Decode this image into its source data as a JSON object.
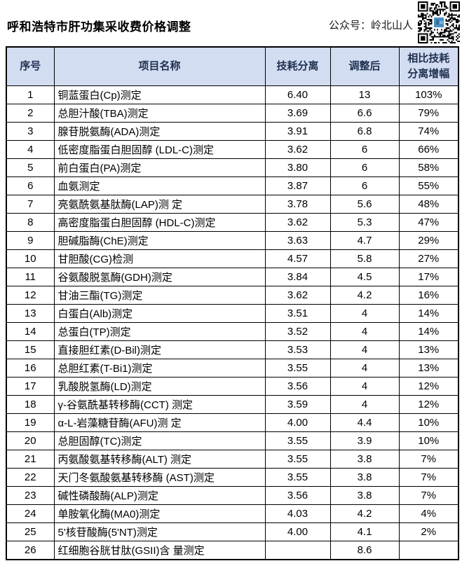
{
  "page": {
    "title": "呼和浩特市肝功集采收费价格调整",
    "account_label": "公众号：岭北山人",
    "qr_icon": "qr-code"
  },
  "colors": {
    "header_bg": "#d3ddf1",
    "header_text": "#1f3050",
    "border": "#000000",
    "qr_logo_blue": "#4a8fc0"
  },
  "table": {
    "columns": [
      "序号",
      "项目名称",
      "技耗分离",
      "调整后",
      "相比技耗分离增幅"
    ],
    "rows": [
      {
        "no": "1",
        "name": "铜蓝蛋白(Cp)测定",
        "sep": "6.40",
        "adjusted": "13",
        "increase": "103%"
      },
      {
        "no": "2",
        "name": "总胆汁酸(TBA)测定",
        "sep": "3.69",
        "adjusted": "6.6",
        "increase": "79%"
      },
      {
        "no": "3",
        "name": "腺苷脱氨酶(ADA)测定",
        "sep": "3.91",
        "adjusted": "6.8",
        "increase": "74%"
      },
      {
        "no": "4",
        "name": "低密度脂蛋白胆固醇 (LDL-C)测定",
        "sep": "3.62",
        "adjusted": "6",
        "increase": "66%"
      },
      {
        "no": "5",
        "name": "前白蛋白(PA)测定",
        "sep": "3.80",
        "adjusted": "6",
        "increase": "58%"
      },
      {
        "no": "6",
        "name": "血氨测定",
        "sep": "3.87",
        "adjusted": "6",
        "increase": "55%"
      },
      {
        "no": "7",
        "name": "亮氨酰氨基肽酶(LAP)测 定",
        "sep": "3.78",
        "adjusted": "5.6",
        "increase": "48%"
      },
      {
        "no": "8",
        "name": "高密度脂蛋白胆固醇 (HDL-C)测定",
        "sep": "3.62",
        "adjusted": "5.3",
        "increase": "47%"
      },
      {
        "no": "9",
        "name": "胆碱脂酶(ChE)测定",
        "sep": "3.63",
        "adjusted": "4.7",
        "increase": "29%"
      },
      {
        "no": "10",
        "name": "甘胆酸(CG)检测",
        "sep": "4.57",
        "adjusted": "5.8",
        "increase": "27%"
      },
      {
        "no": "11",
        "name": "谷氨酸脱氢酶(GDH)测定",
        "sep": "3.84",
        "adjusted": "4.5",
        "increase": "17%"
      },
      {
        "no": "12",
        "name": "甘油三酯(TG)测定",
        "sep": "3.62",
        "adjusted": "4.2",
        "increase": "16%"
      },
      {
        "no": "13",
        "name": "白蛋白(Alb)测定",
        "sep": "3.51",
        "adjusted": "4",
        "increase": "14%"
      },
      {
        "no": "14",
        "name": "总蛋白(TP)测定",
        "sep": "3.52",
        "adjusted": "4",
        "increase": "14%"
      },
      {
        "no": "15",
        "name": "直接胆红素(D-Bil)测定",
        "sep": "3.53",
        "adjusted": "4",
        "increase": "13%"
      },
      {
        "no": "16",
        "name": "总胆红素(T-Bi1)测定",
        "sep": "3.55",
        "adjusted": "4",
        "increase": "13%"
      },
      {
        "no": "17",
        "name": "乳酸脱氢酶(LD)测定",
        "sep": "3.56",
        "adjusted": "4",
        "increase": "12%"
      },
      {
        "no": "18",
        "name": "γ-谷氨酰基转移酶(CCT) 测定",
        "sep": "3.59",
        "adjusted": "4",
        "increase": "12%"
      },
      {
        "no": "19",
        "name": "α-L-岩藻糖苷酶(AFU)测 定",
        "sep": "4.00",
        "adjusted": "4.4",
        "increase": "10%"
      },
      {
        "no": "20",
        "name": "总胆固醇(TC)测定",
        "sep": "3.55",
        "adjusted": "3.9",
        "increase": "10%"
      },
      {
        "no": "21",
        "name": "丙氨酸氨基转移酶(ALT) 测定",
        "sep": "3.55",
        "adjusted": "3.8",
        "increase": "7%"
      },
      {
        "no": "22",
        "name": "天门冬氨酸氨基转移酶 (AST)测定",
        "sep": "3.55",
        "adjusted": "3.8",
        "increase": "7%"
      },
      {
        "no": "23",
        "name": "碱性磷酸酶(ALP)测定",
        "sep": "3.56",
        "adjusted": "3.8",
        "increase": "7%"
      },
      {
        "no": "24",
        "name": "单胺氧化酶(MA0)测定",
        "sep": "4.03",
        "adjusted": "4.2",
        "increase": "4%"
      },
      {
        "no": "25",
        "name": "5'核苷酸酶(5'NT)测定",
        "sep": "4.00",
        "adjusted": "4.1",
        "increase": "2%"
      },
      {
        "no": "26",
        "name": "红细胞谷胱甘肽(GSII)含 量测定",
        "sep": "",
        "adjusted": "8.6",
        "increase": ""
      }
    ]
  }
}
